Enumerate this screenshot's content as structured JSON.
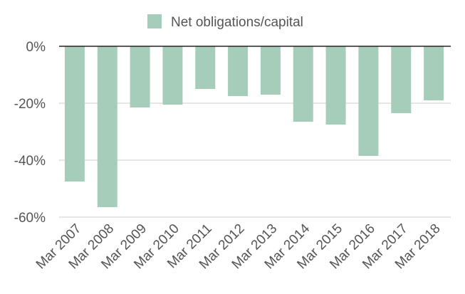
{
  "chart_data": {
    "type": "bar",
    "categories": [
      "Mar 2007",
      "Mar 2008",
      "Mar 2009",
      "Mar 2010",
      "Mar 2011",
      "Mar 2012",
      "Mar 2013",
      "Mar 2014",
      "Mar 2015",
      "Mar 2016",
      "Mar 2017",
      "Mar 2018"
    ],
    "series": [
      {
        "name": "Net obligations/capital",
        "values": [
          -47.5,
          -56.5,
          -21.5,
          -20.5,
          -15,
          -17.5,
          -17,
          -26.5,
          -27.5,
          -38.5,
          -23.5,
          -19
        ]
      }
    ],
    "y_ticks": [
      0,
      -20,
      -40,
      -60
    ],
    "y_tick_labels": [
      "0%",
      "-20%",
      "-40%",
      "-60%"
    ],
    "ylim": [
      -60,
      0
    ],
    "grid": true,
    "legend": "top-center",
    "colors": {
      "bar": "#a6cdb9",
      "grid": "#cccccc",
      "zero_line": "#222222",
      "text": "#555555"
    }
  }
}
